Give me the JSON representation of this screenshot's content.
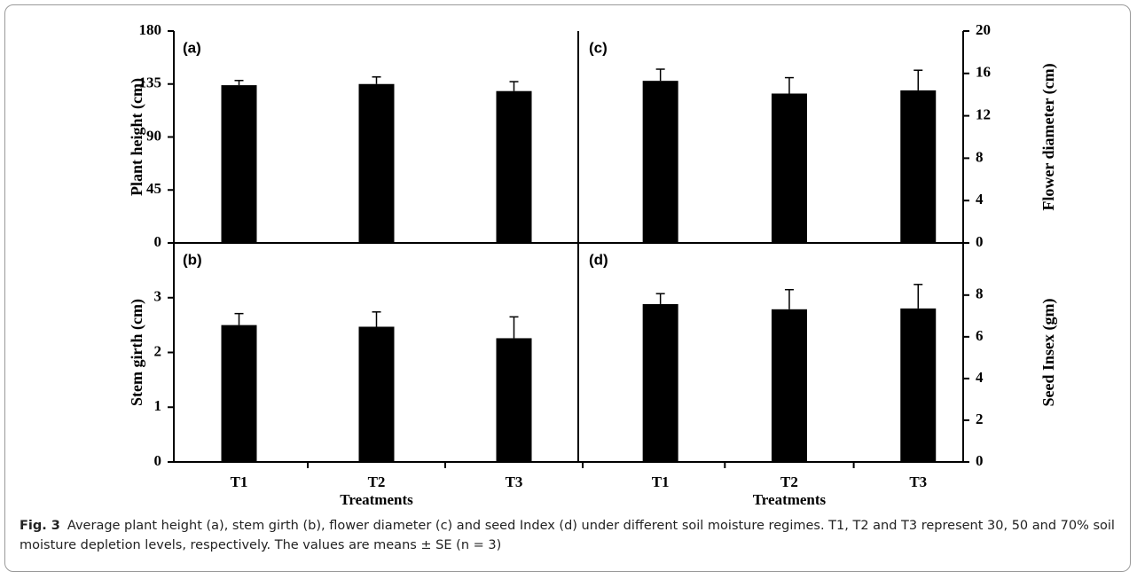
{
  "chart_data": [
    {
      "type": "bar",
      "title": "(a)",
      "ylabel": "Plant height (cm)",
      "categories": [
        "T1",
        "T2",
        "T3"
      ],
      "values": [
        134,
        135,
        129
      ],
      "errors": [
        4,
        6,
        8
      ],
      "color": "#000000",
      "ylim": [
        0,
        180
      ],
      "yticks": [
        0,
        45,
        90,
        135,
        180
      ],
      "axis_side": "left"
    },
    {
      "type": "bar",
      "title": "(b)",
      "ylabel": "Stem girth (cm)",
      "xlabel": "Treatments",
      "categories": [
        "T1",
        "T2",
        "T3"
      ],
      "values": [
        2.5,
        2.47,
        2.26
      ],
      "errors": [
        0.21,
        0.27,
        0.39
      ],
      "color": "#000000",
      "ylim": [
        0,
        4
      ],
      "yticks": [
        0,
        1,
        2,
        3
      ],
      "axis_side": "left"
    },
    {
      "type": "bar",
      "title": "(c)",
      "ylabel": "Flower diameter (cm)",
      "categories": [
        "T1",
        "T2",
        "T3"
      ],
      "values": [
        15.3,
        14.1,
        14.4
      ],
      "errors": [
        1.1,
        1.5,
        1.9
      ],
      "color": "#000000",
      "ylim": [
        0,
        20
      ],
      "yticks": [
        0,
        4,
        8,
        12,
        16,
        20
      ],
      "axis_side": "right"
    },
    {
      "type": "bar",
      "title": "(d)",
      "ylabel": "Seed Insex (gm)",
      "xlabel": "Treatments",
      "categories": [
        "T1",
        "T2",
        "T3"
      ],
      "values": [
        7.57,
        7.32,
        7.36
      ],
      "errors": [
        0.5,
        0.94,
        1.15
      ],
      "color": "#000000",
      "ylim": [
        0,
        10.5
      ],
      "yticks": [
        0,
        2,
        4,
        6,
        8
      ],
      "axis_side": "right"
    }
  ],
  "caption": {
    "label": "Fig. 3",
    "text": "Average plant height (a), stem girth (b), flower diameter (c) and seed Index (d) under different soil moisture regimes. T1, T2 and T3 represent 30, 50 and 70% soil moisture depletion levels, respectively. The values are means ± SE (n = 3)"
  }
}
